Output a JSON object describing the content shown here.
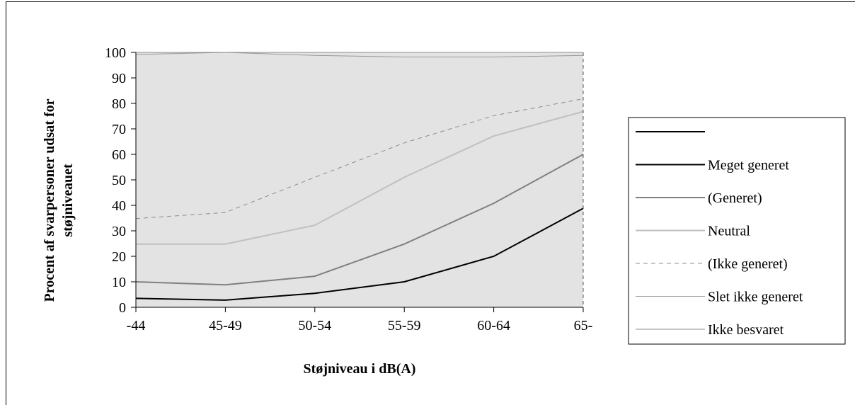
{
  "chart_data": {
    "type": "line",
    "title": "",
    "xlabel": "Støjniveau i dB(A)",
    "ylabel": "Procent af svarpersoner udsat for støjniveauet",
    "ylabel_lines": [
      "Procent af svarpersoner udsat for",
      "støjniveauet"
    ],
    "categories": [
      "-44",
      "45-49",
      "50-54",
      "55-59",
      "60-64",
      "65-"
    ],
    "ylim": [
      0,
      100
    ],
    "yticks": [
      "0",
      "10",
      "20",
      "30",
      "40",
      "50",
      "60",
      "70",
      "80",
      "90",
      "100"
    ],
    "grid": false,
    "plot_background": "#e3e3e3",
    "legend_position": "right",
    "series": [
      {
        "name": "",
        "values": null,
        "color": "#000000",
        "dash": "none",
        "width": 2
      },
      {
        "name": "Meget generet",
        "values": [
          3.5,
          2.8,
          5.5,
          10,
          20,
          38.8
        ],
        "color": "#000000",
        "dash": "none",
        "width": 2
      },
      {
        "name": "(Generet)",
        "values": [
          10,
          8.8,
          12.2,
          24.8,
          40.8,
          60
        ],
        "color": "#808080",
        "dash": "none",
        "width": 2
      },
      {
        "name": "Neutral",
        "values": [
          24.8,
          24.8,
          32.2,
          51,
          67.2,
          76.8
        ],
        "color": "#c0c0c0",
        "dash": "none",
        "width": 2
      },
      {
        "name": "(Ikke generet)",
        "values": [
          34.8,
          37.2,
          51,
          64.5,
          75.2,
          81.8
        ],
        "color": "#8c8c8c",
        "dash": "6,5",
        "width": 1
      },
      {
        "name": "Slet ikke generet",
        "values": [
          99.2,
          100,
          98.8,
          98.2,
          98.2,
          98.8
        ],
        "color": "#999999",
        "dash": "none",
        "width": 1
      },
      {
        "name": "Ikke besvaret",
        "values": [
          100,
          100,
          100,
          100,
          100,
          100
        ],
        "color": "#8c8c8c",
        "dash": "none",
        "width": 1
      }
    ]
  }
}
